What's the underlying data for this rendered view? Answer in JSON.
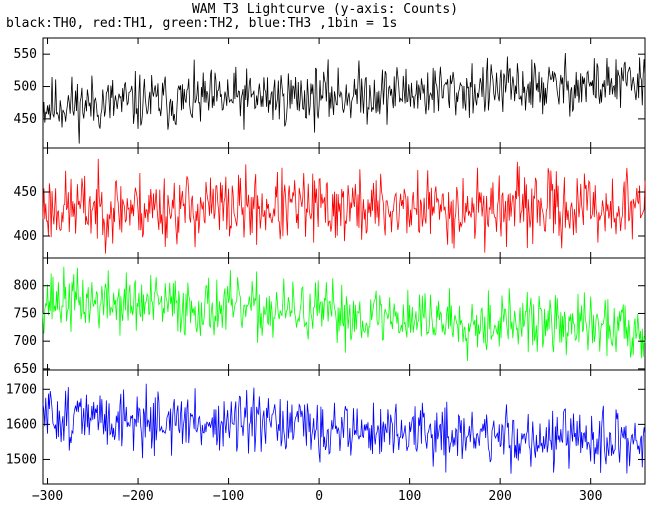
{
  "title": "WAM T3 Lightcurve (y-axis: Counts)",
  "subtitle": "black:TH0, red:TH1, green:TH2, blue:TH3 ,1bin = 1s",
  "chart_data": {
    "type": "line",
    "x_range": [
      -305,
      360
    ],
    "x_ticks": [
      -300,
      -200,
      -100,
      0,
      100,
      200,
      300
    ],
    "bin_seconds": 1,
    "ylabel": "Counts",
    "panels": [
      {
        "name": "TH0",
        "color": "#000000",
        "ylim": [
          405,
          575
        ],
        "y_ticks": [
          450,
          500,
          550
        ],
        "trend": {
          "start": 470,
          "end": 505
        },
        "noise_sd": 22,
        "seed": 11
      },
      {
        "name": "TH1",
        "color": "#ff0000",
        "ylim": [
          375,
          500
        ],
        "y_ticks": [
          400,
          450
        ],
        "trend": {
          "start": 432,
          "end": 432
        },
        "noise_sd": 20,
        "seed": 23
      },
      {
        "name": "TH2",
        "color": "#00ff00",
        "ylim": [
          648,
          850
        ],
        "y_ticks": [
          650,
          700,
          750,
          800
        ],
        "trend": {
          "start": 775,
          "end": 722
        },
        "noise_sd": 27,
        "seed": 37
      },
      {
        "name": "TH3",
        "color": "#0000ff",
        "ylim": [
          1430,
          1755
        ],
        "y_ticks": [
          1500,
          1600,
          1700
        ],
        "trend": {
          "start": 1625,
          "end": 1545
        },
        "noise_sd": 42,
        "seed": 51
      }
    ]
  }
}
